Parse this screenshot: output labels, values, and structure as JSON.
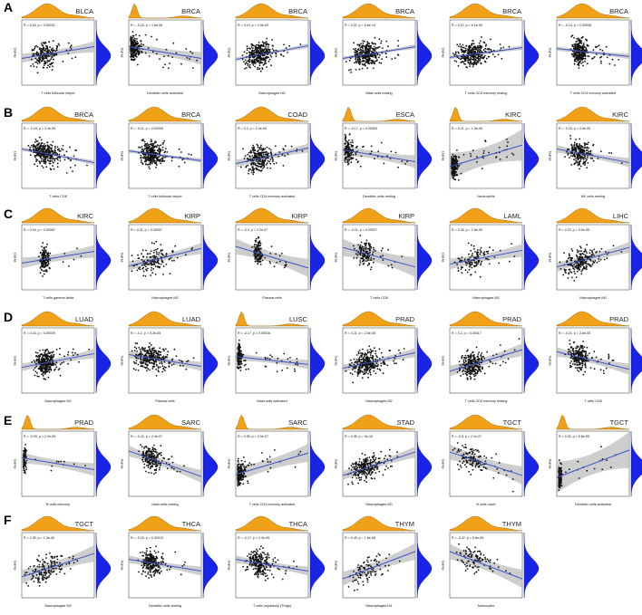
{
  "figure": {
    "row_labels": [
      "A",
      "B",
      "C",
      "D",
      "E",
      "F"
    ],
    "colors": {
      "marginal_x": "#F0A118",
      "marginal_y": "#1A24E6",
      "fit_line": "#3B55C9",
      "confidence_band": "#BDBDBD",
      "points": "#111111",
      "panel_border": "#555555"
    },
    "y_axis_label": "PHPO"
  },
  "chart_data": [
    {
      "type": "scatter",
      "row": "A",
      "title": "BLCA",
      "xlabel": "T cells follicular helper",
      "stat": "R = 0.18, p = 0.00031",
      "slope": 0.3,
      "band": 0.12,
      "n": 210,
      "spread": 0.55
    },
    {
      "type": "scatter",
      "row": "A",
      "title": "BRCA",
      "xlabel": "Dendritic cells activated",
      "stat": "R = -0.15, p = 1.6e-06",
      "slope": -0.3,
      "band": 0.14,
      "n": 240,
      "spread": 0.15
    },
    {
      "type": "scatter",
      "row": "A",
      "title": "BRCA",
      "xlabel": "Macrophages M2",
      "stat": "R = 0.19, p = 4.3e-09",
      "slope": 0.35,
      "band": 0.05,
      "n": 330,
      "spread": 0.6
    },
    {
      "type": "scatter",
      "row": "A",
      "title": "BRCA",
      "xlabel": "Mast cells resting",
      "stat": "R = 0.22, p = 6.8e-14",
      "slope": 0.3,
      "band": 0.05,
      "n": 330,
      "spread": 0.6
    },
    {
      "type": "scatter",
      "row": "A",
      "title": "BRCA",
      "xlabel": "T cells CD4 memory resting",
      "stat": "R = 0.12, p = 6.1e-05",
      "slope": 0.25,
      "band": 0.05,
      "n": 330,
      "spread": 0.6
    },
    {
      "type": "scatter",
      "row": "A",
      "title": "BRCA",
      "xlabel": "T cells CD4 memory activated",
      "stat": "R = -0.14, p = 0.00036",
      "slope": -0.2,
      "band": 0.06,
      "n": 300,
      "spread": 0.3
    },
    {
      "type": "scatter",
      "row": "B",
      "title": "BRCA",
      "xlabel": "T cells CD8",
      "stat": "R = -0.19, p = 3.3e-05",
      "slope": -0.35,
      "band": 0.05,
      "n": 330,
      "spread": 0.6
    },
    {
      "type": "scatter",
      "row": "B",
      "title": "BRCA",
      "xlabel": "T cells follicular helper",
      "stat": "R = -0.11, p = 0.00028",
      "slope": -0.25,
      "band": 0.05,
      "n": 330,
      "spread": 0.5
    },
    {
      "type": "scatter",
      "row": "B",
      "title": "COAD",
      "xlabel": "T cells CD4 memory activated",
      "stat": "R = 0.2, p = 3.3e-05",
      "slope": 0.4,
      "band": 0.1,
      "n": 260,
      "spread": 0.55
    },
    {
      "type": "scatter",
      "row": "B",
      "title": "ESCA",
      "xlabel": "Dendritic cells resting",
      "stat": "R = -0.17, p = 0.00063",
      "slope": -0.3,
      "band": 0.14,
      "n": 170,
      "spread": 0.15
    },
    {
      "type": "scatter",
      "row": "B",
      "title": "KIRC",
      "xlabel": "Neutrophils",
      "stat": "R = 0.21, p = 1.9e-06",
      "slope": 0.55,
      "band": 0.35,
      "n": 200,
      "spread": 0.1
    },
    {
      "type": "scatter",
      "row": "B",
      "title": "KIRC",
      "xlabel": "NK cells resting",
      "stat": "R = -0.18, p = 3.5e-05",
      "slope": -0.35,
      "band": 0.1,
      "n": 220,
      "spread": 0.5
    },
    {
      "type": "scatter",
      "row": "C",
      "title": "KIRC",
      "xlabel": "T cells gamma delta",
      "stat": "R = 0.16, p = 0.00087",
      "slope": 0.3,
      "band": 0.14,
      "n": 150,
      "spread": 0.2
    },
    {
      "type": "scatter",
      "row": "C",
      "title": "KIRP",
      "xlabel": "Macrophages M2",
      "stat": "R = 0.21, p = 0.00037",
      "slope": 0.45,
      "band": 0.12,
      "n": 150,
      "spread": 0.75
    },
    {
      "type": "scatter",
      "row": "C",
      "title": "KIRP",
      "xlabel": "Plasma cells",
      "stat": "R = -0.3, p = 2.2e-07",
      "slope": -0.55,
      "band": 0.2,
      "n": 150,
      "spread": 0.2
    },
    {
      "type": "scatter",
      "row": "C",
      "title": "KIRP",
      "xlabel": "T cells CD8",
      "stat": "R = -0.31, p = 0.00037",
      "slope": -0.5,
      "band": 0.22,
      "n": 150,
      "spread": 0.4
    },
    {
      "type": "scatter",
      "row": "C",
      "title": "LAML",
      "xlabel": "Macrophages M2",
      "stat": "R = 0.26, p = 1.8e-05",
      "slope": 0.35,
      "band": 0.14,
      "n": 120,
      "spread": 0.75
    },
    {
      "type": "scatter",
      "row": "C",
      "title": "LIHC",
      "xlabel": "Macrophages M0",
      "stat": "R = 0.23, p = 9.6e-05",
      "slope": 0.5,
      "band": 0.12,
      "n": 220,
      "spread": 0.7
    },
    {
      "type": "scatter",
      "row": "D",
      "title": "LUAD",
      "xlabel": "Macrophages M2",
      "stat": "R = 0.16, p = 0.00039",
      "slope": 0.35,
      "band": 0.1,
      "n": 330,
      "spread": 0.45
    },
    {
      "type": "scatter",
      "row": "D",
      "title": "LUAD",
      "xlabel": "Plasma cells",
      "stat": "R = -0.2, p = 5.3e-05",
      "slope": -0.3,
      "band": 0.1,
      "n": 280,
      "spread": 0.75
    },
    {
      "type": "scatter",
      "row": "D",
      "title": "LUSC",
      "xlabel": "Mast cells activated",
      "stat": "R = -0.17, p = 0.00016",
      "slope": -0.2,
      "band": 0.1,
      "n": 160,
      "spread": 0.08
    },
    {
      "type": "scatter",
      "row": "D",
      "title": "PRAD",
      "xlabel": "Macrophages M2",
      "stat": "R = 0.21, p = 2.5e-06",
      "slope": 0.4,
      "band": 0.1,
      "n": 300,
      "spread": 0.65
    },
    {
      "type": "scatter",
      "row": "D",
      "title": "PRAD",
      "xlabel": "T cells CD4 memory resting",
      "stat": "R = 0.2, p = 0.00017",
      "slope": 0.55,
      "band": 0.14,
      "n": 280,
      "spread": 0.5
    },
    {
      "type": "scatter",
      "row": "D",
      "title": "PRAD",
      "xlabel": "T cells CD8",
      "stat": "R = -0.21, p = 2.6e-05",
      "slope": -0.45,
      "band": 0.12,
      "n": 240,
      "spread": 0.45
    },
    {
      "type": "scatter",
      "row": "E",
      "title": "PRAD",
      "xlabel": "B cells memory",
      "stat": "R = -0.09, p = 2.2e-05",
      "slope": -0.3,
      "band": 0.14,
      "n": 90,
      "spread": 0.05
    },
    {
      "type": "scatter",
      "row": "E",
      "title": "SARC",
      "xlabel": "Mast cells resting",
      "stat": "R = -0.32, p = 2.4e-07",
      "slope": -0.65,
      "band": 0.14,
      "n": 200,
      "spread": 0.45
    },
    {
      "type": "scatter",
      "row": "E",
      "title": "SARC",
      "xlabel": "T cells CD4 memory activated",
      "stat": "R = 0.35, p = 3.3e-07",
      "slope": 0.55,
      "band": 0.2,
      "n": 180,
      "spread": 0.12
    },
    {
      "type": "scatter",
      "row": "E",
      "title": "STAD",
      "xlabel": "Macrophages M0",
      "stat": "R = 0.36, p = 3e-10",
      "slope": 0.6,
      "band": 0.12,
      "n": 260,
      "spread": 0.65
    },
    {
      "type": "scatter",
      "row": "E",
      "title": "TGCT",
      "xlabel": "B cells naive",
      "stat": "R = -0.5, p = 2.1e-07",
      "slope": -0.6,
      "band": 0.2,
      "n": 140,
      "spread": 0.75
    },
    {
      "type": "scatter",
      "row": "E",
      "title": "TGCT",
      "xlabel": "Dendritic cells activated",
      "stat": "R = 0.33, p = 5.8e-05",
      "slope": 0.7,
      "band": 0.4,
      "n": 120,
      "spread": 0.05
    },
    {
      "type": "scatter",
      "row": "F",
      "title": "TGCT",
      "xlabel": "Macrophages M2",
      "stat": "R = 0.35, p = 1.3e-05",
      "slope": 0.6,
      "band": 0.18,
      "n": 160,
      "spread": 0.75
    },
    {
      "type": "scatter",
      "row": "F",
      "title": "THCA",
      "xlabel": "Dendritic cells resting",
      "stat": "R = -0.15, p = 0.00013",
      "slope": -0.3,
      "band": 0.1,
      "n": 240,
      "spread": 0.45
    },
    {
      "type": "scatter",
      "row": "F",
      "title": "THCA",
      "xlabel": "T cells regulatory (Tregs)",
      "stat": "R = -0.17, p = 1.3e-05",
      "slope": -0.3,
      "band": 0.1,
      "n": 240,
      "spread": 0.5
    },
    {
      "type": "scatter",
      "row": "F",
      "title": "THYM",
      "xlabel": "Macrophages M1",
      "stat": "R = 0.43, p = 1.8e-06",
      "slope": 0.7,
      "band": 0.18,
      "n": 100,
      "spread": 0.7
    },
    {
      "type": "scatter",
      "row": "F",
      "title": "THYM",
      "xlabel": "Monocytes",
      "stat": "R = -0.47, p = 5.8e-05",
      "slope": -0.7,
      "band": 0.2,
      "n": 100,
      "spread": 0.7
    }
  ]
}
